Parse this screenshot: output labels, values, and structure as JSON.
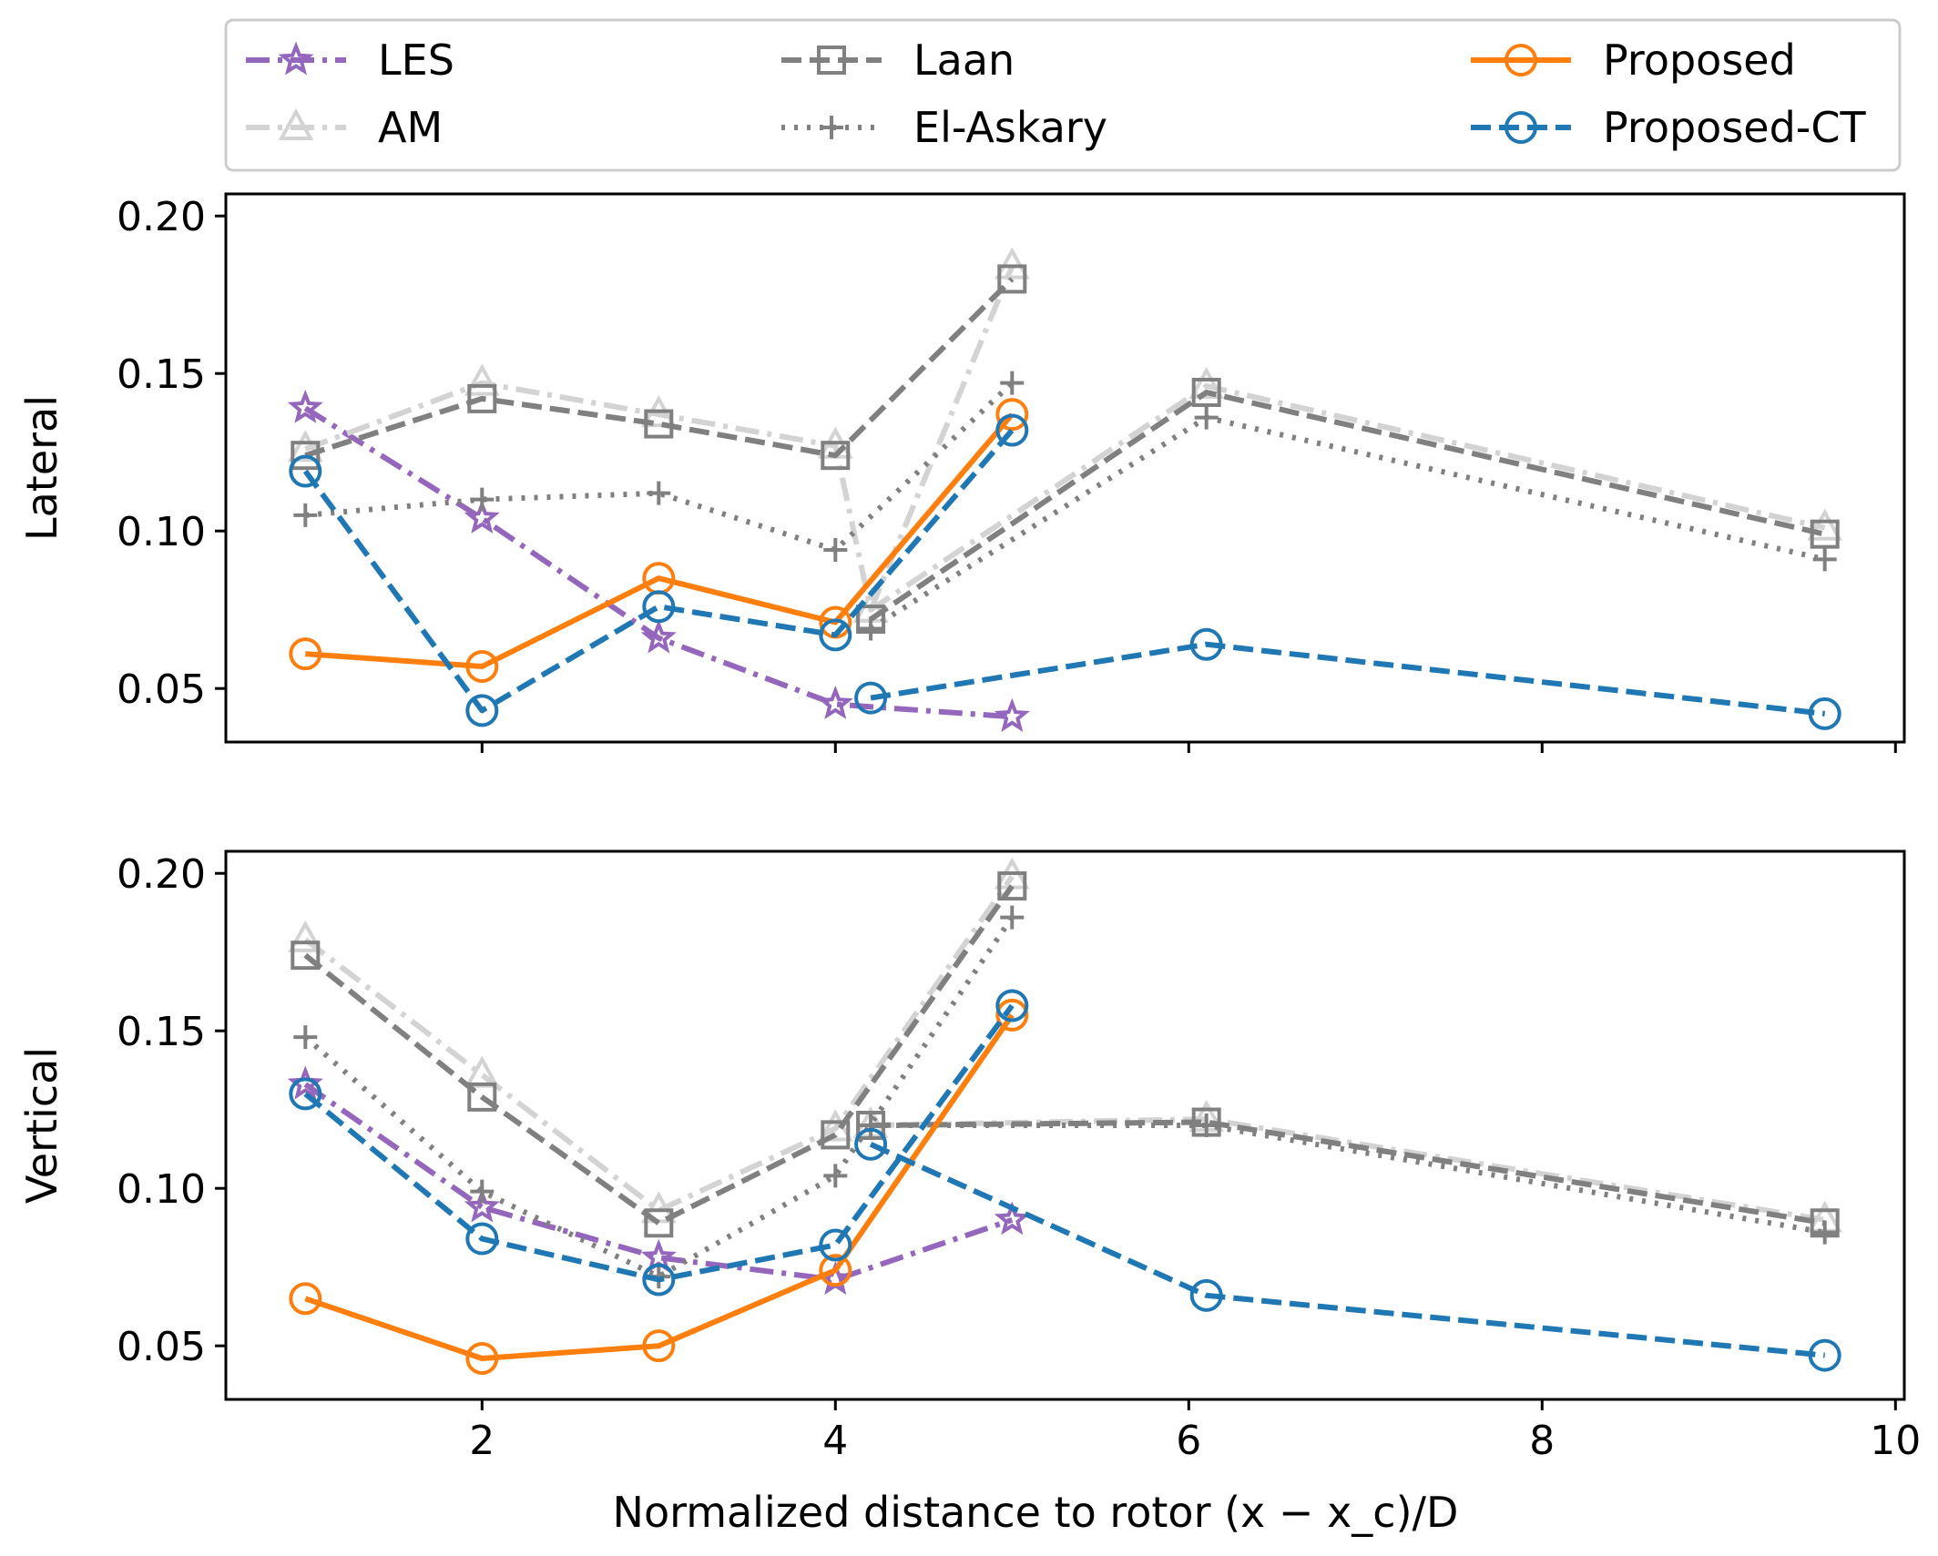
{
  "legend": {
    "entries": [
      {
        "name": "LES",
        "color": "#9467bd",
        "marker": "star",
        "dash": "dashdot"
      },
      {
        "name": "AM",
        "color": "#d3d3d3",
        "marker": "triangle",
        "dash": "dashdot"
      },
      {
        "name": "Laan",
        "color": "#808080",
        "marker": "square",
        "dash": "dashed"
      },
      {
        "name": "El-Askary",
        "color": "#808080",
        "marker": "plus",
        "dash": "dotted"
      },
      {
        "name": "Proposed",
        "color": "#ff7f0e",
        "marker": "circle",
        "dash": "solid"
      },
      {
        "name": "Proposed-CT",
        "color": "#1f77b4",
        "marker": "circle",
        "dash": "dashed"
      }
    ]
  },
  "chart_data": [
    {
      "type": "line",
      "panel": "top",
      "ylabel": "Lateral",
      "xlabel": "",
      "xlim": [
        0.55,
        10.05
      ],
      "ylim": [
        0.033,
        0.207
      ],
      "xticks": [
        2,
        4,
        6,
        8,
        10
      ],
      "yticks": [
        0.05,
        0.1,
        0.15,
        0.2
      ],
      "ytick_labels": [
        "0.05",
        "0.10",
        "0.15",
        "0.20"
      ],
      "show_xtick_labels": false,
      "series": [
        {
          "name": "LES",
          "x": [
            1,
            2,
            3,
            4,
            5
          ],
          "y": [
            0.139,
            0.104,
            0.066,
            0.045,
            0.041
          ]
        },
        {
          "name": "AM",
          "x": [
            1,
            2,
            3,
            4,
            4.2,
            6.1,
            9.6
          ],
          "y": [
            0.126,
            0.147,
            0.137,
            0.127,
            0.075,
            0.146,
            0.101
          ],
          "x_b": [
            4.2,
            5
          ],
          "y_b": [
            0.075,
            0.184
          ]
        },
        {
          "name": "Laan",
          "x": [
            1,
            2,
            3,
            4,
            5
          ],
          "y": [
            0.124,
            0.142,
            0.134,
            0.124,
            0.18
          ]
        },
        {
          "name": "Laan-far",
          "x": [
            4.2,
            6.1,
            9.6
          ],
          "y": [
            0.072,
            0.144,
            0.099
          ]
        },
        {
          "name": "El-Askary",
          "x": [
            1,
            2,
            3,
            4,
            5
          ],
          "y": [
            0.105,
            0.11,
            0.112,
            0.094,
            0.147
          ]
        },
        {
          "name": "El-Askary-far",
          "x": [
            4.2,
            6.1,
            9.6
          ],
          "y": [
            0.069,
            0.136,
            0.091
          ]
        },
        {
          "name": "Proposed",
          "x": [
            1,
            2,
            3,
            4,
            5
          ],
          "y": [
            0.061,
            0.057,
            0.085,
            0.071,
            0.137
          ]
        },
        {
          "name": "Proposed-CT",
          "x": [
            1,
            2,
            3,
            4,
            5
          ],
          "y": [
            0.119,
            0.043,
            0.076,
            0.067,
            0.132
          ]
        },
        {
          "name": "Proposed-CT-far",
          "x": [
            4.2,
            6.1,
            9.6
          ],
          "y": [
            0.047,
            0.064,
            0.042
          ]
        }
      ]
    },
    {
      "type": "line",
      "panel": "bottom",
      "ylabel": "Vertical",
      "xlabel": "Normalized distance to rotor (x − x_c)/D",
      "xlim": [
        0.55,
        10.05
      ],
      "ylim": [
        0.033,
        0.207
      ],
      "xticks": [
        2,
        4,
        6,
        8,
        10
      ],
      "xtick_labels": [
        "2",
        "4",
        "6",
        "8",
        "10"
      ],
      "yticks": [
        0.05,
        0.1,
        0.15,
        0.2
      ],
      "ytick_labels": [
        "0.05",
        "0.10",
        "0.15",
        "0.20"
      ],
      "show_xtick_labels": true,
      "series": [
        {
          "name": "LES",
          "x": [
            1,
            2,
            3,
            4,
            5
          ],
          "y": [
            0.133,
            0.094,
            0.078,
            0.071,
            0.09
          ]
        },
        {
          "name": "AM",
          "x": [
            1,
            2,
            3,
            4,
            5
          ],
          "y": [
            0.179,
            0.136,
            0.093,
            0.119,
            0.199
          ]
        },
        {
          "name": "AM-far",
          "x": [
            4.2,
            6.1,
            9.6
          ],
          "y": [
            0.12,
            0.122,
            0.09
          ]
        },
        {
          "name": "Laan",
          "x": [
            1,
            2,
            3,
            4,
            5
          ],
          "y": [
            0.174,
            0.129,
            0.089,
            0.117,
            0.196
          ]
        },
        {
          "name": "Laan-far",
          "x": [
            4.2,
            6.1,
            9.6
          ],
          "y": [
            0.12,
            0.121,
            0.089
          ]
        },
        {
          "name": "El-Askary",
          "x": [
            1,
            2,
            3,
            4,
            5
          ],
          "y": [
            0.148,
            0.099,
            0.072,
            0.104,
            0.186
          ]
        },
        {
          "name": "El-Askary-far",
          "x": [
            4.2,
            6.1,
            9.6
          ],
          "y": [
            0.12,
            0.12,
            0.086
          ]
        },
        {
          "name": "Proposed",
          "x": [
            1,
            2,
            3,
            4,
            5
          ],
          "y": [
            0.065,
            0.046,
            0.05,
            0.074,
            0.155
          ]
        },
        {
          "name": "Proposed-CT",
          "x": [
            1,
            2,
            3,
            4,
            5
          ],
          "y": [
            0.13,
            0.084,
            0.071,
            0.082,
            0.158
          ]
        },
        {
          "name": "Proposed-CT-far",
          "x": [
            4.2,
            6.1,
            9.6
          ],
          "y": [
            0.114,
            0.066,
            0.047
          ]
        }
      ]
    }
  ]
}
